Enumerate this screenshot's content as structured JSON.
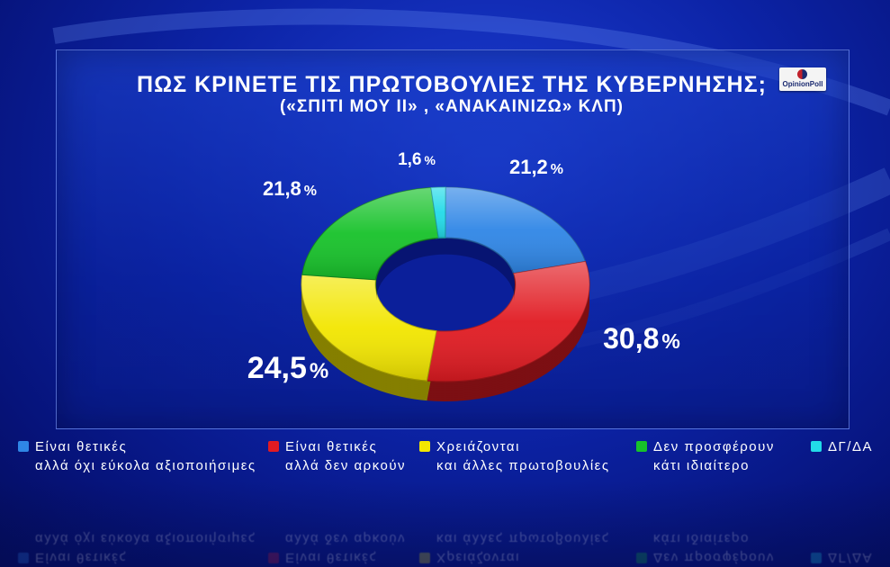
{
  "title": "ΠΩΣ ΚΡΙΝΕΤΕ ΤΙΣ ΠΡΩΤΟΒΟΥΛΙΕΣ ΤΗΣ ΚΥΒΕΡΝΗΣΗΣ;",
  "subtitle": "(«ΣΠΙΤΙ ΜΟΥ ΙΙ» , «ΑΝΑΚΑΙΝΙΖΩ» ΚΛΠ)",
  "logo_text": "OpinionPoll",
  "chart_data": {
    "type": "pie",
    "style": "donut",
    "categories": [
      "Είναι θετικές αλλά όχι εύκολα αξιοποιήσιμες",
      "Είναι θετικές αλλά δεν αρκούν",
      "Χρειάζονται και άλλες πρωτοβουλίες",
      "Δεν προσφέρουν κάτι ιδιαίτερο",
      "ΔΓ/ΔΑ"
    ],
    "values": [
      21.2,
      30.8,
      24.5,
      21.8,
      1.6
    ],
    "value_labels": [
      "21,2",
      "30,8",
      "24,5",
      "21,8",
      "1,6"
    ],
    "unit": "%",
    "colors": [
      "#2f86e6",
      "#e11b22",
      "#f2e600",
      "#17c22a",
      "#22dbe8"
    ],
    "legend_position": "bottom"
  },
  "legend": [
    {
      "line1": "Είναι θετικές",
      "line2": "αλλά όχι εύκολα αξιοποιήσιμες",
      "color": "#2f86e6"
    },
    {
      "line1": "Είναι θετικές",
      "line2": "αλλά δεν αρκούν",
      "color": "#e11b22"
    },
    {
      "line1": "Χρειάζονται",
      "line2": "και άλλες πρωτοβουλίες",
      "color": "#f2e600"
    },
    {
      "line1": "Δεν προσφέρουν",
      "line2": "κάτι ιδιαίτερο",
      "color": "#17c22a"
    },
    {
      "line1": "ΔΓ/ΔΑ",
      "line2": "",
      "color": "#22dbe8"
    }
  ]
}
